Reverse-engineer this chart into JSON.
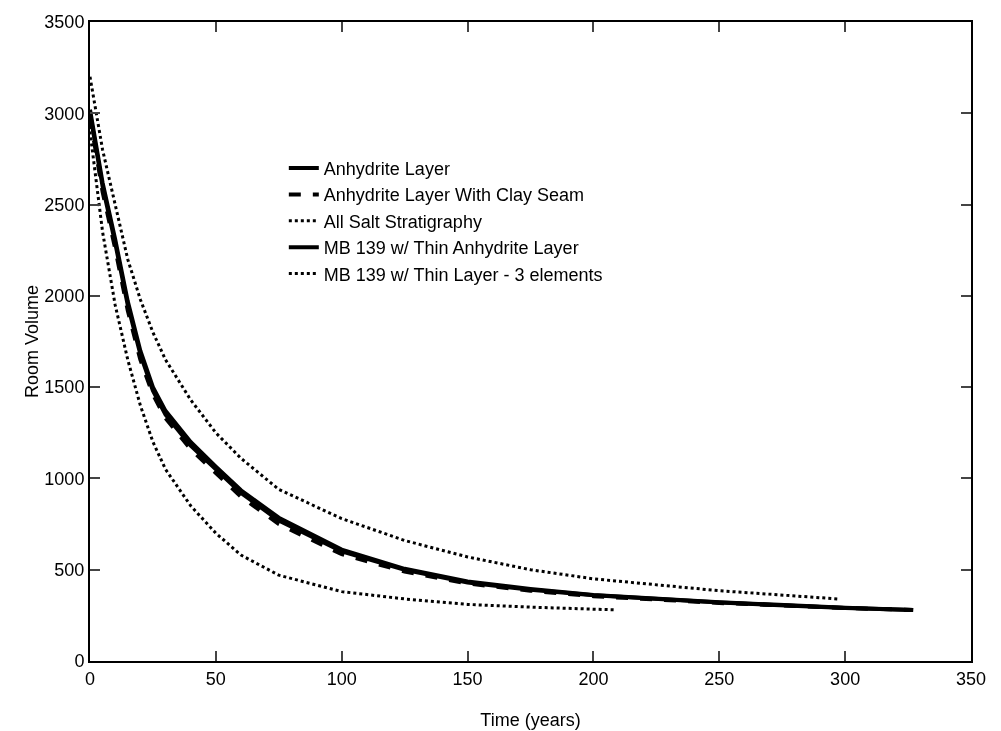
{
  "chart_data": {
    "type": "line",
    "xlabel": "Time (years)",
    "ylabel": "Room Volume",
    "xlim": [
      0,
      350
    ],
    "xticks": [
      0,
      50,
      100,
      150,
      200,
      250,
      300,
      350
    ],
    "ylim": [
      0,
      3500
    ],
    "yticks": [
      0,
      500,
      1000,
      1500,
      2000,
      2500,
      3000,
      3500
    ],
    "grid": false,
    "legend": "top",
    "series": [
      {
        "name": "Anhydrite Layer",
        "color": "#000000",
        "line_style": "solid",
        "x": [
          0,
          5,
          10,
          15,
          20,
          25,
          30,
          40,
          50,
          60,
          75,
          100,
          125,
          150,
          175,
          200,
          250,
          300,
          327
        ],
        "values": [
          3000,
          2600,
          2290,
          1950,
          1680,
          1480,
          1350,
          1180,
          1050,
          920,
          770,
          600,
          500,
          430,
          390,
          360,
          320,
          290,
          280
        ]
      },
      {
        "name": "Anhydrite Layer With Clay Seam",
        "color": "#000000",
        "line_style": "dashed",
        "x": [
          0,
          5,
          10,
          15,
          20,
          25,
          30,
          40,
          50,
          60,
          75,
          100,
          125,
          150,
          175,
          200,
          250,
          300,
          327
        ],
        "values": [
          2980,
          2570,
          2260,
          1920,
          1650,
          1460,
          1330,
          1160,
          1030,
          900,
          750,
          585,
          490,
          425,
          385,
          355,
          318,
          290,
          280
        ]
      },
      {
        "name": "All Salt Stratigraphy",
        "color": "#000000",
        "line_style": "dotted",
        "x": [
          0,
          5,
          10,
          15,
          20,
          25,
          30,
          40,
          50,
          60,
          75,
          100,
          125,
          150,
          175,
          209
        ],
        "values": [
          2900,
          2350,
          1950,
          1650,
          1400,
          1200,
          1050,
          850,
          700,
          580,
          470,
          380,
          340,
          310,
          295,
          280
        ]
      },
      {
        "name": "MB 139 w/ Thin Anhydrite Layer",
        "color": "#000000",
        "line_style": "solid",
        "x": [
          0,
          5,
          10,
          15,
          20,
          25,
          30,
          40,
          50,
          60,
          75,
          100,
          125,
          150,
          175,
          200,
          250,
          300,
          327
        ],
        "values": [
          3020,
          2620,
          2310,
          1970,
          1700,
          1500,
          1370,
          1200,
          1065,
          935,
          785,
          610,
          505,
          435,
          395,
          362,
          322,
          292,
          280
        ]
      },
      {
        "name": "MB 139 w/ Thin Layer - 3 elements",
        "color": "#000000",
        "line_style": "dotted",
        "x": [
          0,
          5,
          10,
          15,
          20,
          25,
          30,
          40,
          50,
          60,
          75,
          100,
          125,
          150,
          175,
          200,
          250,
          297
        ],
        "values": [
          3200,
          2800,
          2500,
          2200,
          1980,
          1800,
          1650,
          1430,
          1250,
          1110,
          940,
          780,
          660,
          570,
          500,
          450,
          385,
          340
        ]
      }
    ]
  }
}
